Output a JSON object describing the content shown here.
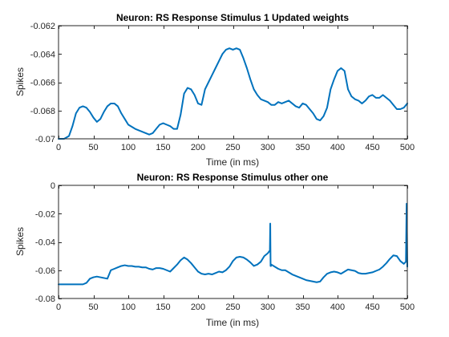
{
  "series_color": "#0072bd",
  "chart_data": [
    {
      "type": "line",
      "title": "Neuron: RS Response Stimulus 1 Updated weights",
      "xlabel": "Time (in ms)",
      "ylabel": "Spikes",
      "xlim": [
        0,
        500
      ],
      "ylim": [
        -0.07,
        -0.062
      ],
      "xticks": [
        0,
        50,
        100,
        150,
        200,
        250,
        300,
        350,
        400,
        450,
        500
      ],
      "xtick_labels": [
        "0",
        "50",
        "100",
        "150",
        "200",
        "250",
        "300",
        "350",
        "400",
        "450",
        "500"
      ],
      "yticks": [
        -0.07,
        -0.068,
        -0.066,
        -0.064,
        -0.062
      ],
      "ytick_labels": [
        "-0.07",
        "-0.068",
        "-0.066",
        "-0.064",
        "-0.062"
      ],
      "series": [
        {
          "x": [
            0,
            8,
            15,
            20,
            25,
            30,
            35,
            40,
            45,
            50,
            55,
            60,
            65,
            70,
            75,
            80,
            85,
            90,
            95,
            100,
            110,
            120,
            130,
            135,
            140,
            145,
            150,
            155,
            160,
            165,
            170,
            175,
            180,
            185,
            190,
            195,
            200,
            205,
            210,
            215,
            220,
            225,
            230,
            235,
            240,
            245,
            250,
            255,
            260,
            265,
            270,
            275,
            280,
            285,
            290,
            300,
            305,
            310,
            315,
            320,
            325,
            330,
            335,
            340,
            345,
            350,
            355,
            360,
            365,
            370,
            375,
            380,
            385,
            390,
            395,
            400,
            405,
            410,
            415,
            420,
            425,
            430,
            435,
            440,
            445,
            450,
            455,
            460,
            465,
            470,
            475,
            480,
            485,
            490,
            495,
            500
          ],
          "y": [
            -0.07,
            -0.07,
            -0.0698,
            -0.0691,
            -0.0682,
            -0.0678,
            -0.0677,
            -0.0678,
            -0.0681,
            -0.0685,
            -0.0688,
            -0.0686,
            -0.0681,
            -0.0677,
            -0.0675,
            -0.0675,
            -0.0677,
            -0.0682,
            -0.0686,
            -0.069,
            -0.0693,
            -0.0695,
            -0.0697,
            -0.0696,
            -0.0693,
            -0.069,
            -0.0689,
            -0.069,
            -0.0691,
            -0.0693,
            -0.0693,
            -0.0683,
            -0.0668,
            -0.0664,
            -0.0665,
            -0.0669,
            -0.0675,
            -0.0676,
            -0.0665,
            -0.066,
            -0.0655,
            -0.065,
            -0.0645,
            -0.064,
            -0.0637,
            -0.0636,
            -0.0637,
            -0.0636,
            -0.0637,
            -0.0643,
            -0.065,
            -0.0658,
            -0.0665,
            -0.0669,
            -0.0672,
            -0.0674,
            -0.0676,
            -0.0676,
            -0.0674,
            -0.0675,
            -0.0674,
            -0.0673,
            -0.0675,
            -0.0677,
            -0.0678,
            -0.0675,
            -0.0676,
            -0.0679,
            -0.0682,
            -0.0686,
            -0.0687,
            -0.0684,
            -0.0678,
            -0.0665,
            -0.0658,
            -0.0652,
            -0.065,
            -0.0652,
            -0.0665,
            -0.067,
            -0.0672,
            -0.0673,
            -0.0675,
            -0.0673,
            -0.067,
            -0.0669,
            -0.0671,
            -0.0671,
            -0.0669,
            -0.0671,
            -0.0673,
            -0.0676,
            -0.0679,
            -0.0679,
            -0.0678,
            -0.0675
          ]
        }
      ]
    },
    {
      "type": "line",
      "title": "Neuron: RS Response Stimulus other one",
      "xlabel": "Time (in ms)",
      "ylabel": "Spikes",
      "xlim": [
        0,
        500
      ],
      "ylim": [
        -0.08,
        0
      ],
      "xticks": [
        0,
        50,
        100,
        150,
        200,
        250,
        300,
        350,
        400,
        450,
        500
      ],
      "xtick_labels": [
        "0",
        "50",
        "100",
        "150",
        "200",
        "250",
        "300",
        "350",
        "400",
        "450",
        "500"
      ],
      "yticks": [
        -0.08,
        -0.06,
        -0.04,
        -0.02,
        0
      ],
      "ytick_labels": [
        "-0.08",
        "-0.06",
        "-0.04",
        "-0.02",
        "0"
      ],
      "series": [
        {
          "x": [
            0,
            20,
            35,
            40,
            45,
            50,
            55,
            60,
            65,
            70,
            75,
            80,
            85,
            90,
            95,
            100,
            105,
            110,
            115,
            120,
            125,
            130,
            135,
            140,
            145,
            150,
            155,
            160,
            165,
            170,
            175,
            180,
            185,
            190,
            195,
            200,
            205,
            210,
            215,
            220,
            225,
            230,
            235,
            240,
            245,
            250,
            255,
            260,
            265,
            270,
            275,
            280,
            285,
            290,
            295,
            300,
            303,
            303.5,
            304,
            304.5,
            305,
            310,
            315,
            320,
            325,
            330,
            335,
            340,
            345,
            350,
            355,
            360,
            365,
            370,
            375,
            380,
            385,
            390,
            395,
            400,
            405,
            410,
            415,
            420,
            425,
            430,
            435,
            440,
            445,
            450,
            455,
            460,
            465,
            470,
            475,
            480,
            485,
            490,
            495,
            498,
            499,
            500
          ],
          "y": [
            -0.07,
            -0.07,
            -0.07,
            -0.069,
            -0.066,
            -0.065,
            -0.0645,
            -0.065,
            -0.0655,
            -0.066,
            -0.06,
            -0.059,
            -0.058,
            -0.057,
            -0.0565,
            -0.057,
            -0.057,
            -0.0575,
            -0.0575,
            -0.058,
            -0.058,
            -0.059,
            -0.0595,
            -0.0585,
            -0.0585,
            -0.059,
            -0.06,
            -0.061,
            -0.0585,
            -0.056,
            -0.053,
            -0.051,
            -0.0525,
            -0.055,
            -0.058,
            -0.061,
            -0.0625,
            -0.063,
            -0.0625,
            -0.063,
            -0.062,
            -0.061,
            -0.0615,
            -0.06,
            -0.0575,
            -0.0535,
            -0.051,
            -0.0505,
            -0.051,
            -0.0525,
            -0.0545,
            -0.057,
            -0.056,
            -0.054,
            -0.05,
            -0.048,
            -0.046,
            -0.027,
            -0.057,
            -0.057,
            -0.056,
            -0.0575,
            -0.059,
            -0.06,
            -0.06,
            -0.0615,
            -0.063,
            -0.064,
            -0.065,
            -0.066,
            -0.067,
            -0.0675,
            -0.068,
            -0.0685,
            -0.068,
            -0.065,
            -0.0625,
            -0.0615,
            -0.061,
            -0.0615,
            -0.0625,
            -0.061,
            -0.0595,
            -0.06,
            -0.0605,
            -0.062,
            -0.0625,
            -0.0625,
            -0.062,
            -0.0615,
            -0.0605,
            -0.0595,
            -0.0575,
            -0.055,
            -0.052,
            -0.0495,
            -0.05,
            -0.0535,
            -0.0555,
            -0.054,
            -0.013,
            -0.0575
          ]
        }
      ]
    }
  ]
}
